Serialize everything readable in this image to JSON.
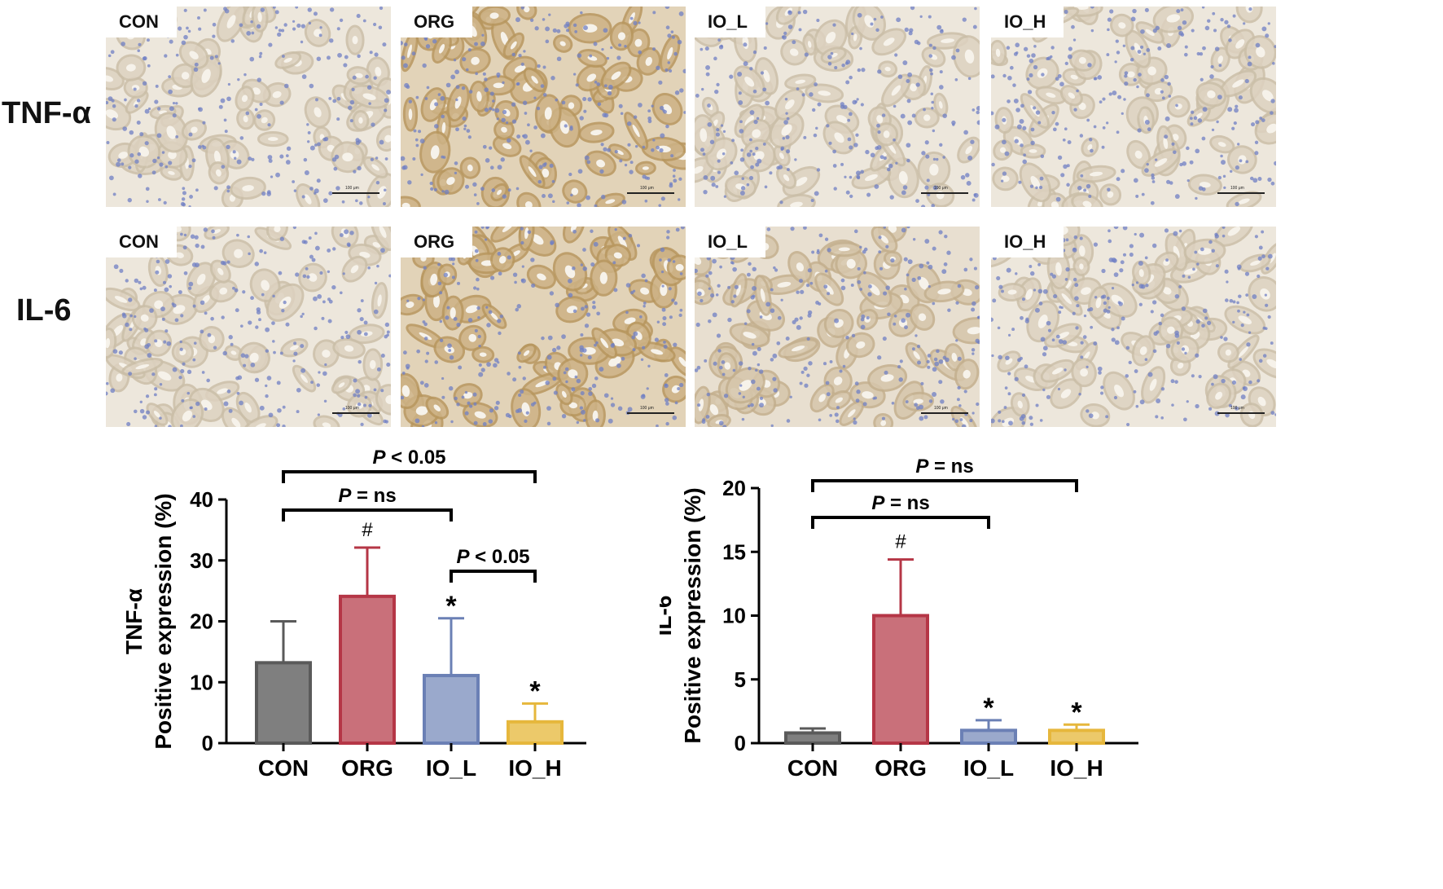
{
  "colors": {
    "CON": "#7f7f7f",
    "ORG": "#c9707a",
    "ORG_edge": "#b53646",
    "IO_L": "#9aa9cc",
    "IO_L_edge": "#6b80b5",
    "IO_H": "#ecc96a",
    "IO_H_edge": "#e6b73c"
  },
  "micrographs": {
    "rows": [
      {
        "label": "TNF-α",
        "panels": [
          {
            "label": "CON",
            "stain": "light"
          },
          {
            "label": "ORG",
            "stain": "heavy"
          },
          {
            "label": "IO_L",
            "stain": "light"
          },
          {
            "label": "IO_H",
            "stain": "light"
          }
        ]
      },
      {
        "label": "IL-6",
        "panels": [
          {
            "label": "CON",
            "stain": "light"
          },
          {
            "label": "ORG",
            "stain": "heavy"
          },
          {
            "label": "IO_L",
            "stain": "medium"
          },
          {
            "label": "IO_H",
            "stain": "light"
          }
        ]
      }
    ],
    "scale_label": "100 μm"
  },
  "chart_data": [
    {
      "type": "bar",
      "categories": [
        "CON",
        "ORG",
        "IO_L",
        "IO_H"
      ],
      "values": [
        13.2,
        24.1,
        11.1,
        3.5
      ],
      "errors": [
        6.8,
        8.0,
        9.4,
        3.0
      ],
      "markers": [
        "",
        "#",
        "*",
        "*"
      ],
      "ylabel_line1": "TNF-α",
      "ylabel_line2": "Positive expression (%)",
      "ylim": [
        0,
        40
      ],
      "yticks": [
        0,
        10,
        20,
        30,
        40
      ],
      "brackets": [
        {
          "from": 0,
          "to": 3,
          "label_p": "P",
          "label_rest": " < 0.05"
        },
        {
          "from": 0,
          "to": 2,
          "label_p": "P",
          "label_rest": " = ns"
        },
        {
          "from": 2,
          "to": 3,
          "label_p": "P",
          "label_rest": " < 0.05"
        }
      ]
    },
    {
      "type": "bar",
      "categories": [
        "CON",
        "ORG",
        "IO_L",
        "IO_H"
      ],
      "values": [
        0.8,
        10.0,
        1.0,
        1.0
      ],
      "errors": [
        0.35,
        4.4,
        0.8,
        0.45
      ],
      "markers": [
        "",
        "#",
        "*",
        "*"
      ],
      "ylabel_line1": "IL-6",
      "ylabel_line2": "Positive expression (%)",
      "ylim": [
        0,
        20
      ],
      "yticks": [
        0,
        5,
        10,
        15,
        20
      ],
      "brackets": [
        {
          "from": 0,
          "to": 3,
          "label_p": "P",
          "label_rest": " = ns"
        },
        {
          "from": 0,
          "to": 2,
          "label_p": "P",
          "label_rest": " = ns"
        }
      ]
    }
  ]
}
